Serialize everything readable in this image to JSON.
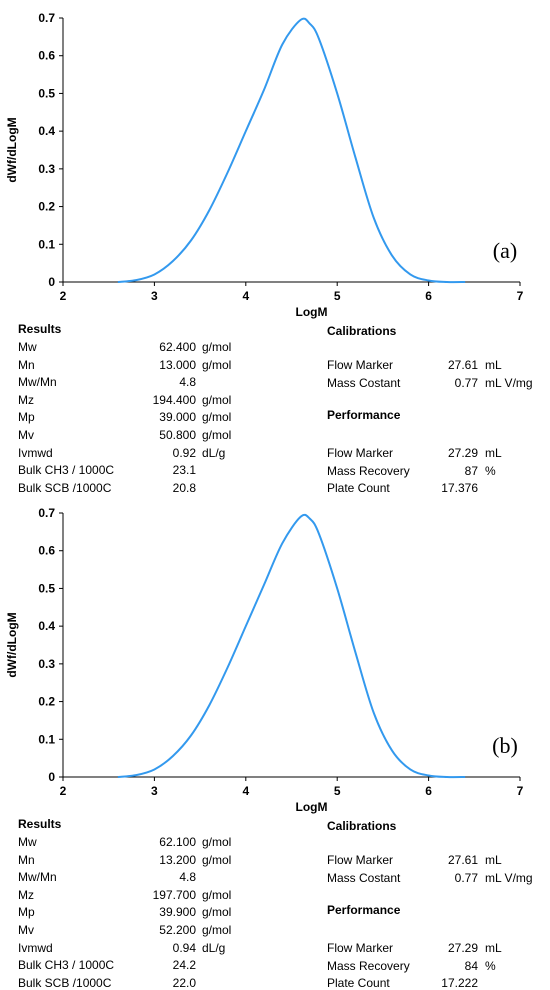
{
  "charts": [
    {
      "panel_label": "(a)",
      "chart_data": {
        "type": "line",
        "xlabel": "LogM",
        "ylabel": "dWf/dLogM",
        "xlim": [
          2,
          7
        ],
        "ylim": [
          0,
          0.7
        ],
        "x_ticks": [
          "2",
          "3",
          "4",
          "5",
          "6",
          "7"
        ],
        "y_ticks": [
          "0",
          "0.1",
          "0.2",
          "0.3",
          "0.4",
          "0.5",
          "0.6",
          "0.7"
        ],
        "line_color": "#3399ee",
        "grid": false,
        "series": [
          {
            "x": [
              2.6,
              2.8,
              3.0,
              3.2,
              3.4,
              3.6,
              3.8,
              4.0,
              4.2,
              4.4,
              4.6,
              4.7,
              4.8,
              5.0,
              5.2,
              5.4,
              5.6,
              5.8,
              6.0,
              6.2,
              6.4
            ],
            "y": [
              0.0,
              0.005,
              0.02,
              0.055,
              0.11,
              0.19,
              0.29,
              0.4,
              0.51,
              0.63,
              0.695,
              0.685,
              0.645,
              0.5,
              0.33,
              0.17,
              0.07,
              0.02,
              0.004,
              0.0,
              0.0
            ]
          }
        ]
      },
      "results": {
        "heading": "Results",
        "rows": [
          {
            "label": "Mw",
            "value": "62.400",
            "unit": "g/mol"
          },
          {
            "label": "Mn",
            "value": "13.000",
            "unit": "g/mol"
          },
          {
            "label": "Mw/Mn",
            "value": "4.8",
            "unit": ""
          },
          {
            "label": "Mz",
            "value": "194.400",
            "unit": "g/mol"
          },
          {
            "label": "Mp",
            "value": "39.000",
            "unit": "g/mol"
          },
          {
            "label": "Mv",
            "value": "50.800",
            "unit": "g/mol"
          },
          {
            "label": "Ivmwd",
            "value": "0.92",
            "unit": "dL/g"
          },
          {
            "label": "Bulk CH3 / 1000C",
            "value": "23.1",
            "unit": ""
          },
          {
            "label": "Bulk SCB /1000C",
            "value": "20.8",
            "unit": ""
          }
        ]
      },
      "calibrations": {
        "heading": "Calibrations",
        "rows": [
          {
            "label": "Flow Marker",
            "value": "27.61",
            "unit": "mL"
          },
          {
            "label": "Mass Costant",
            "value": "0.77",
            "unit": "mL V/mg"
          }
        ]
      },
      "performance": {
        "heading": "Performance",
        "rows": [
          {
            "label": "Flow Marker",
            "value": "27.29",
            "unit": "mL"
          },
          {
            "label": "Mass Recovery",
            "value": "87",
            "unit": "%"
          },
          {
            "label": "Plate Count",
            "value": "17.376",
            "unit": ""
          }
        ]
      }
    },
    {
      "panel_label": "(b)",
      "chart_data": {
        "type": "line",
        "xlabel": "LogM",
        "ylabel": "dWf/dLogM",
        "xlim": [
          2,
          7
        ],
        "ylim": [
          0,
          0.7
        ],
        "x_ticks": [
          "2",
          "3",
          "4",
          "5",
          "6",
          "7"
        ],
        "y_ticks": [
          "0",
          "0.1",
          "0.2",
          "0.3",
          "0.4",
          "0.5",
          "0.6",
          "0.7"
        ],
        "line_color": "#3399ee",
        "grid": false,
        "series": [
          {
            "x": [
              2.6,
              2.8,
              3.0,
              3.2,
              3.4,
              3.6,
              3.8,
              4.0,
              4.2,
              4.4,
              4.6,
              4.7,
              4.8,
              5.0,
              5.2,
              5.4,
              5.6,
              5.8,
              6.0,
              6.2,
              6.4
            ],
            "y": [
              0.0,
              0.005,
              0.02,
              0.055,
              0.11,
              0.19,
              0.29,
              0.4,
              0.51,
              0.62,
              0.69,
              0.685,
              0.645,
              0.5,
              0.33,
              0.17,
              0.07,
              0.02,
              0.004,
              0.0,
              0.0
            ]
          }
        ]
      },
      "results": {
        "heading": "Results",
        "rows": [
          {
            "label": "Mw",
            "value": "62.100",
            "unit": "g/mol"
          },
          {
            "label": "Mn",
            "value": "13.200",
            "unit": "g/mol"
          },
          {
            "label": "Mw/Mn",
            "value": "4.8",
            "unit": ""
          },
          {
            "label": "Mz",
            "value": "197.700",
            "unit": "g/mol"
          },
          {
            "label": "Mp",
            "value": "39.900",
            "unit": "g/mol"
          },
          {
            "label": "Mv",
            "value": "52.200",
            "unit": "g/mol"
          },
          {
            "label": "Ivmwd",
            "value": "0.94",
            "unit": "dL/g"
          },
          {
            "label": "Bulk CH3 / 1000C",
            "value": "24.2",
            "unit": ""
          },
          {
            "label": "Bulk SCB /1000C",
            "value": "22.0",
            "unit": ""
          }
        ]
      },
      "calibrations": {
        "heading": "Calibrations",
        "rows": [
          {
            "label": "Flow Marker",
            "value": "27.61",
            "unit": "mL"
          },
          {
            "label": "Mass Costant",
            "value": "0.77",
            "unit": "mL V/mg"
          }
        ]
      },
      "performance": {
        "heading": "Performance",
        "rows": [
          {
            "label": "Flow Marker",
            "value": "27.29",
            "unit": "mL"
          },
          {
            "label": "Mass Recovery",
            "value": "84",
            "unit": "%"
          },
          {
            "label": "Plate Count",
            "value": "17.222",
            "unit": ""
          }
        ]
      }
    }
  ]
}
